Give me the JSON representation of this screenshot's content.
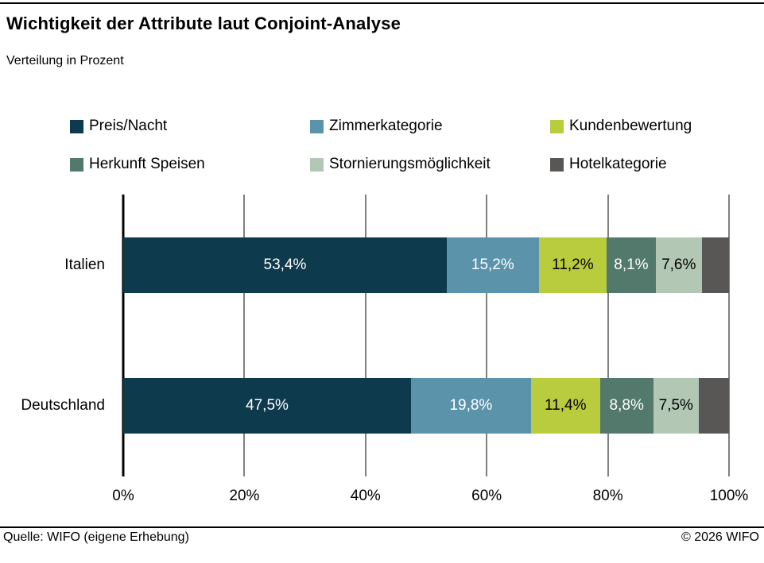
{
  "header": {
    "title": "Wichtigkeit der Attribute laut Conjoint-Analyse",
    "subtitle": "Verteilung in Prozent"
  },
  "chart_data": {
    "type": "bar",
    "orientation": "horizontal",
    "stacked": true,
    "grid": true,
    "legend_position": "top",
    "xlim": [
      0,
      100
    ],
    "x_ticks": [
      "0%",
      "20%",
      "40%",
      "60%",
      "80%",
      "100%"
    ],
    "categories": [
      "Italien",
      "Deutschland"
    ],
    "series": [
      {
        "name": "Preis/Nacht",
        "color": "#0e3a4d",
        "label_color": "#ffffff",
        "values": [
          53.4,
          47.5
        ],
        "labels": [
          "53,4%",
          "47,5%"
        ]
      },
      {
        "name": "Zimmerkategorie",
        "color": "#5b93ab",
        "label_color": "#ffffff",
        "values": [
          15.2,
          19.8
        ],
        "labels": [
          "15,2%",
          "19,8%"
        ]
      },
      {
        "name": "Kundenbewertung",
        "color": "#b9cc3e",
        "label_color": "#000000",
        "values": [
          11.2,
          11.4
        ],
        "labels": [
          "11,2%",
          "11,4%"
        ]
      },
      {
        "name": "Herkunft Speisen",
        "color": "#53796d",
        "label_color": "#ffffff",
        "values": [
          8.1,
          8.8
        ],
        "labels": [
          "8,1%",
          "8,8%"
        ]
      },
      {
        "name": "Stornierungsmöglichkeit",
        "color": "#b2c8b4",
        "label_color": "#000000",
        "values": [
          7.6,
          7.5
        ],
        "labels": [
          "7,6%",
          "7,5%"
        ]
      },
      {
        "name": "Hotelkategorie",
        "color": "#595756",
        "label_color": "#ffffff",
        "values": [
          4.5,
          5.0
        ],
        "labels": [
          "",
          ""
        ]
      }
    ]
  },
  "footer": {
    "source": "Quelle: WIFO (eigene Erhebung)",
    "copyright": "© 2026 WIFO"
  }
}
